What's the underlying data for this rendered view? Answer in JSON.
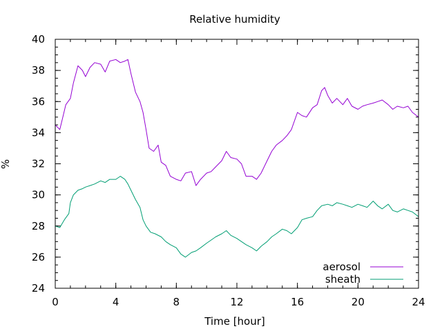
{
  "chart_data": {
    "type": "line",
    "title": "Relative humidity",
    "xlabel": "Time [hour]",
    "ylabel": "%",
    "xlim": [
      0,
      24
    ],
    "ylim": [
      24,
      40
    ],
    "xticks": [
      0,
      4,
      8,
      12,
      16,
      20,
      24
    ],
    "yticks": [
      24,
      26,
      28,
      30,
      32,
      34,
      36,
      38,
      40
    ],
    "xminor_step": 1,
    "yminor_step": 0.5,
    "grid": false,
    "legend_position": "bottom-right",
    "series": [
      {
        "name": "aerosol",
        "color": "#9400d3",
        "x": [
          0,
          0.3,
          0.5,
          0.7,
          1,
          1.2,
          1.5,
          1.8,
          2,
          2.3,
          2.6,
          3,
          3.3,
          3.6,
          4,
          4.3,
          4.6,
          4.8,
          5,
          5.3,
          5.6,
          5.8,
          6,
          6.2,
          6.5,
          6.8,
          7,
          7.3,
          7.6,
          8,
          8.3,
          8.6,
          9,
          9.3,
          9.6,
          10,
          10.3,
          10.6,
          11,
          11.3,
          11.6,
          12,
          12.3,
          12.6,
          13,
          13.3,
          13.6,
          14,
          14.3,
          14.6,
          15,
          15.3,
          15.6,
          16,
          16.3,
          16.6,
          17,
          17.3,
          17.6,
          17.8,
          18,
          18.3,
          18.6,
          19,
          19.3,
          19.6,
          20,
          20.3,
          20.6,
          21,
          21.3,
          21.6,
          22,
          22.3,
          22.6,
          23,
          23.3,
          23.6,
          24
        ],
        "y": [
          34.5,
          34.2,
          35.0,
          35.8,
          36.2,
          37.2,
          38.3,
          38.0,
          37.6,
          38.2,
          38.5,
          38.4,
          37.9,
          38.6,
          38.7,
          38.5,
          38.6,
          38.7,
          37.8,
          36.6,
          36.0,
          35.3,
          34.2,
          33.0,
          32.8,
          33.2,
          32.1,
          31.9,
          31.2,
          31.0,
          30.9,
          31.4,
          31.5,
          30.6,
          31.0,
          31.4,
          31.5,
          31.8,
          32.2,
          32.8,
          32.4,
          32.3,
          32.0,
          31.2,
          31.2,
          31.0,
          31.4,
          32.2,
          32.8,
          33.2,
          33.5,
          33.8,
          34.2,
          35.3,
          35.1,
          35.0,
          35.6,
          35.8,
          36.7,
          36.9,
          36.4,
          35.9,
          36.2,
          35.8,
          36.2,
          35.7,
          35.5,
          35.7,
          35.8,
          35.9,
          36.0,
          36.1,
          35.8,
          35.5,
          35.7,
          35.6,
          35.7,
          35.3,
          35.0
        ]
      },
      {
        "name": "sheath",
        "color": "#009e73",
        "x": [
          0,
          0.3,
          0.6,
          0.9,
          1,
          1.2,
          1.5,
          1.8,
          2,
          2.3,
          2.6,
          3,
          3.3,
          3.6,
          4,
          4.3,
          4.6,
          4.8,
          5,
          5.3,
          5.6,
          5.8,
          6,
          6.3,
          6.6,
          7,
          7.3,
          7.6,
          8,
          8.3,
          8.6,
          9,
          9.3,
          9.6,
          10,
          10.3,
          10.6,
          11,
          11.3,
          11.6,
          12,
          12.3,
          12.6,
          13,
          13.3,
          13.6,
          14,
          14.3,
          14.6,
          15,
          15.3,
          15.6,
          16,
          16.3,
          16.6,
          17,
          17.3,
          17.6,
          18,
          18.3,
          18.6,
          19,
          19.3,
          19.6,
          20,
          20.3,
          20.6,
          21,
          21.3,
          21.6,
          22,
          22.3,
          22.6,
          23,
          23.3,
          23.6,
          24
        ],
        "y": [
          28.0,
          27.9,
          28.4,
          28.8,
          29.5,
          30.0,
          30.3,
          30.4,
          30.5,
          30.6,
          30.7,
          30.9,
          30.8,
          31.0,
          31.0,
          31.2,
          31.0,
          30.7,
          30.3,
          29.7,
          29.2,
          28.4,
          28.0,
          27.6,
          27.5,
          27.3,
          27.0,
          26.8,
          26.6,
          26.2,
          26.0,
          26.3,
          26.4,
          26.6,
          26.9,
          27.1,
          27.3,
          27.5,
          27.7,
          27.4,
          27.2,
          27.0,
          26.8,
          26.6,
          26.4,
          26.7,
          27.0,
          27.3,
          27.5,
          27.8,
          27.7,
          27.5,
          27.9,
          28.4,
          28.5,
          28.6,
          29.0,
          29.3,
          29.4,
          29.3,
          29.5,
          29.4,
          29.3,
          29.2,
          29.4,
          29.3,
          29.2,
          29.6,
          29.3,
          29.1,
          29.4,
          29.0,
          28.9,
          29.1,
          29.0,
          28.9,
          28.6
        ]
      }
    ]
  }
}
